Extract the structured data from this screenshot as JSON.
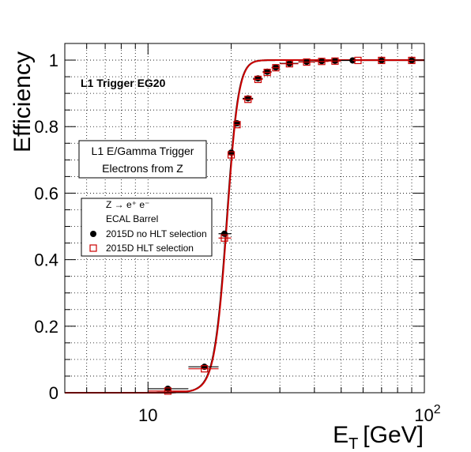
{
  "chart_data": {
    "type": "scatter",
    "xscale": "log",
    "xlim": [
      5,
      100
    ],
    "ylim": [
      0,
      1.05
    ],
    "grid": true,
    "ylabel": "Efficiency",
    "xlabel_main": "E",
    "xlabel_sub": "T",
    "xlabel_unit": "[GeV]",
    "x_ticks": [
      {
        "value": 10,
        "label": "10"
      }
    ],
    "x_tick_100": {
      "base": "10",
      "exponent": "2"
    },
    "y_ticks": [
      {
        "value": 0,
        "label": "0"
      },
      {
        "value": 0.2,
        "label": "0.2"
      },
      {
        "value": 0.4,
        "label": "0.4"
      },
      {
        "value": 0.6,
        "label": "0.6"
      },
      {
        "value": 0.8,
        "label": "0.8"
      },
      {
        "value": 1.0,
        "label": "1"
      }
    ],
    "annotation": "L1 Trigger EG20",
    "info_box": [
      "L1 E/Gamma Trigger",
      "Electrons from Z"
    ],
    "legend": {
      "process": "Z → e⁺ e⁻",
      "region": "ECAL Barrel"
    },
    "series": [
      {
        "name": "2015D no HLT selection",
        "marker": "filled-circle",
        "color": "#000000",
        "points": [
          {
            "x": 11.8,
            "xerr": [
              10.0,
              14.0
            ],
            "y": 0.012
          },
          {
            "x": 16.0,
            "xerr": [
              14.0,
              18.0
            ],
            "y": 0.078
          },
          {
            "x": 18.9,
            "xerr": [
              18.0,
              20.0
            ],
            "y": 0.478
          },
          {
            "x": 20.0,
            "xerr": [
              19.5,
              20.5
            ],
            "y": 0.722
          },
          {
            "x": 21.0,
            "xerr": [
              20.5,
              21.5
            ],
            "y": 0.81
          },
          {
            "x": 23.0,
            "xerr": [
              22.0,
              24.0
            ],
            "y": 0.885
          },
          {
            "x": 25.0,
            "xerr": [
              24.0,
              26.0
            ],
            "y": 0.945
          },
          {
            "x": 27.0,
            "xerr": [
              26.0,
              28.0
            ],
            "y": 0.965
          },
          {
            "x": 29.0,
            "xerr": [
              28.0,
              30.0
            ],
            "y": 0.978
          },
          {
            "x": 32.5,
            "xerr": [
              30.0,
              35.0
            ],
            "y": 0.99
          },
          {
            "x": 37.5,
            "xerr": [
              35.0,
              40.0
            ],
            "y": 0.995
          },
          {
            "x": 42.5,
            "xerr": [
              40.0,
              45.0
            ],
            "y": 0.997
          },
          {
            "x": 47.5,
            "xerr": [
              45.0,
              50.0
            ],
            "y": 0.998
          },
          {
            "x": 55.0,
            "xerr": [
              50.0,
              60.0
            ],
            "y": 0.999
          },
          {
            "x": 70.0,
            "xerr": [
              60.0,
              80.0
            ],
            "y": 0.999
          },
          {
            "x": 90.0,
            "xerr": [
              80.0,
              100.0
            ],
            "y": 0.999
          }
        ]
      },
      {
        "name": "2015D HLT selection",
        "marker": "open-square",
        "color": "#cc0000",
        "points": [
          {
            "x": 11.8,
            "xerr": [
              10.0,
              14.0
            ],
            "y": 0.005
          },
          {
            "x": 16.0,
            "xerr": [
              14.0,
              18.0
            ],
            "y": 0.072
          },
          {
            "x": 18.9,
            "xerr": [
              18.0,
              20.0
            ],
            "y": 0.465
          },
          {
            "x": 20.0,
            "xerr": [
              19.5,
              20.5
            ],
            "y": 0.715
          },
          {
            "x": 21.0,
            "xerr": [
              20.5,
              21.5
            ],
            "y": 0.806
          },
          {
            "x": 23.0,
            "xerr": [
              22.0,
              24.0
            ],
            "y": 0.882
          },
          {
            "x": 25.0,
            "xerr": [
              24.0,
              26.0
            ],
            "y": 0.942
          },
          {
            "x": 27.0,
            "xerr": [
              26.0,
              28.0
            ],
            "y": 0.963
          },
          {
            "x": 29.0,
            "xerr": [
              28.0,
              30.0
            ],
            "y": 0.977
          },
          {
            "x": 32.5,
            "xerr": [
              30.0,
              35.0
            ],
            "y": 0.989
          },
          {
            "x": 37.5,
            "xerr": [
              35.0,
              40.0
            ],
            "y": 0.994
          },
          {
            "x": 42.5,
            "xerr": [
              40.0,
              45.0
            ],
            "y": 0.996
          },
          {
            "x": 47.5,
            "xerr": [
              45.0,
              50.0
            ],
            "y": 0.997
          },
          {
            "x": 57.5,
            "xerr": [
              55.0,
              60.0
            ],
            "y": 0.999
          },
          {
            "x": 70.0,
            "xerr": [
              60.0,
              80.0
            ],
            "y": 0.999
          },
          {
            "x": 90.0,
            "xerr": [
              80.0,
              100.0
            ],
            "y": 0.999
          }
        ]
      }
    ],
    "fits": [
      {
        "series": "2015D no HLT selection",
        "color": "#000000",
        "midpoint": 19.2,
        "width": 0.96
      },
      {
        "series": "2015D HLT selection",
        "color": "#cc0000",
        "midpoint": 19.25,
        "width": 0.96
      }
    ]
  }
}
